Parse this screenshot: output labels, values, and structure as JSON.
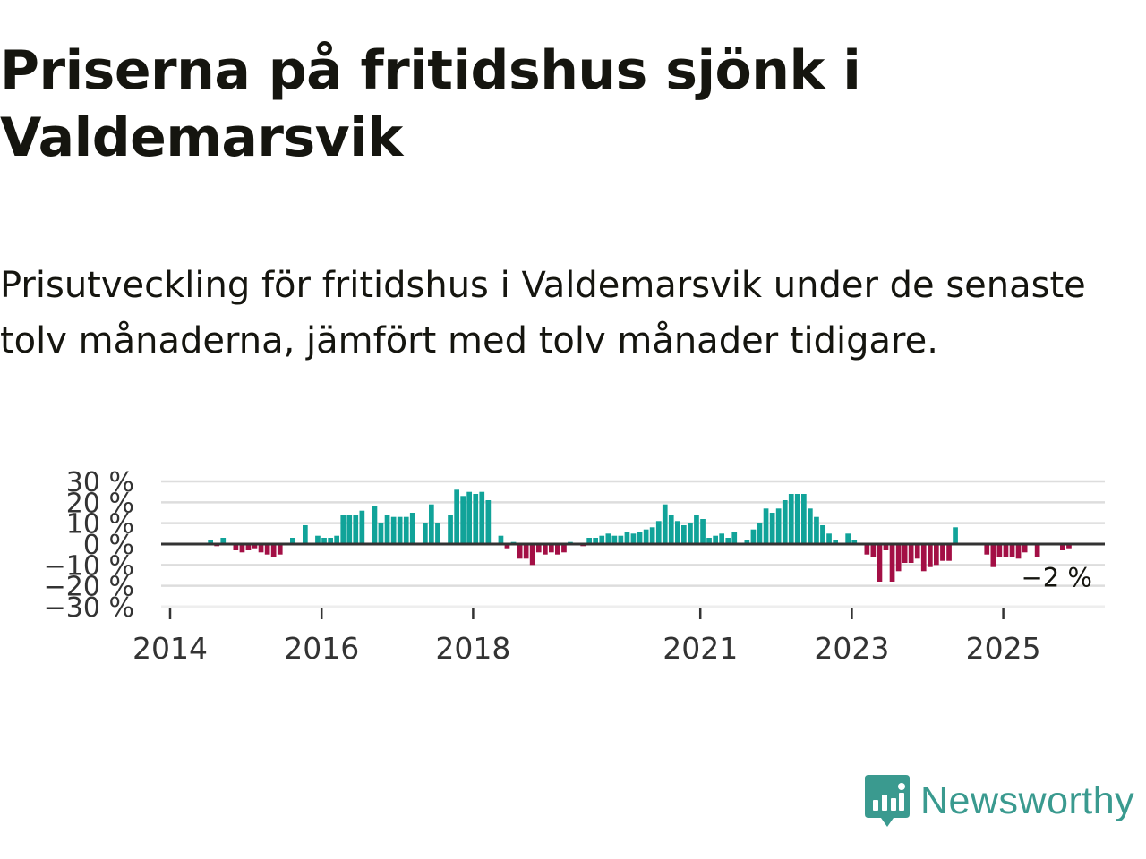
{
  "title": "Priserna på fritidshus sjönk i Valdemarsvik",
  "subtitle": "Prisutveckling för fritidshus i Valdemarsvik under de senaste tolv månaderna, jämfört med tolv månader tidigare.",
  "brand": {
    "name": "Newsworthy",
    "icon": "newsworthy-logo-icon",
    "color": "#3a9a8f"
  },
  "colors": {
    "positive": "#11a399",
    "negative": "#a30f45",
    "zero_line": "#333333",
    "grid": "#dddddd"
  },
  "chart_data": {
    "type": "bar",
    "x_format": "YYYY-MM",
    "ylabel": "",
    "ylim": [
      -30,
      30
    ],
    "yticks": [
      {
        "value": 30,
        "label": "30 %"
      },
      {
        "value": 20,
        "label": "20 %"
      },
      {
        "value": 10,
        "label": "10 %"
      },
      {
        "value": 0,
        "label": "0 %"
      },
      {
        "value": -10,
        "label": "−10 %"
      },
      {
        "value": -20,
        "label": "−20 %"
      },
      {
        "value": -30,
        "label": "−30 %"
      }
    ],
    "xticks": [
      "2014",
      "2016",
      "2018",
      "2021",
      "2023",
      "2025"
    ],
    "grid": "horizontal",
    "end_label": "−2 %",
    "series": [
      {
        "values": [
          [
            "2014-07",
            2
          ],
          [
            "2014-08",
            -1
          ],
          [
            "2014-09",
            3
          ],
          [
            "2014-11",
            -3
          ],
          [
            "2014-12",
            -4
          ],
          [
            "2015-01",
            -3
          ],
          [
            "2015-02",
            -2
          ],
          [
            "2015-03",
            -4
          ],
          [
            "2015-04",
            -5
          ],
          [
            "2015-05",
            -6
          ],
          [
            "2015-06",
            -5
          ],
          [
            "2015-08",
            3
          ],
          [
            "2015-10",
            9
          ],
          [
            "2015-12",
            4
          ],
          [
            "2016-01",
            3
          ],
          [
            "2016-02",
            3
          ],
          [
            "2016-03",
            4
          ],
          [
            "2016-04",
            14
          ],
          [
            "2016-05",
            14
          ],
          [
            "2016-06",
            14
          ],
          [
            "2016-07",
            16
          ],
          [
            "2016-09",
            18
          ],
          [
            "2016-10",
            10
          ],
          [
            "2016-11",
            14
          ],
          [
            "2016-12",
            13
          ],
          [
            "2017-01",
            13
          ],
          [
            "2017-02",
            13
          ],
          [
            "2017-03",
            15
          ],
          [
            "2017-05",
            10
          ],
          [
            "2017-06",
            19
          ],
          [
            "2017-07",
            10
          ],
          [
            "2017-09",
            14
          ],
          [
            "2017-10",
            26
          ],
          [
            "2017-11",
            23
          ],
          [
            "2017-12",
            25
          ],
          [
            "2018-01",
            24
          ],
          [
            "2018-02",
            25
          ],
          [
            "2018-03",
            21
          ],
          [
            "2018-05",
            4
          ],
          [
            "2018-06",
            -2
          ],
          [
            "2018-07",
            1
          ],
          [
            "2018-08",
            -7
          ],
          [
            "2018-09",
            -7
          ],
          [
            "2018-10",
            -10
          ],
          [
            "2018-11",
            -4
          ],
          [
            "2018-12",
            -5
          ],
          [
            "2019-01",
            -4
          ],
          [
            "2019-02",
            -5
          ],
          [
            "2019-03",
            -4
          ],
          [
            "2019-04",
            1
          ],
          [
            "2019-06",
            -1
          ],
          [
            "2019-07",
            3
          ],
          [
            "2019-08",
            3
          ],
          [
            "2019-09",
            4
          ],
          [
            "2019-10",
            5
          ],
          [
            "2019-11",
            4
          ],
          [
            "2019-12",
            4
          ],
          [
            "2020-01",
            6
          ],
          [
            "2020-02",
            5
          ],
          [
            "2020-03",
            6
          ],
          [
            "2020-04",
            7
          ],
          [
            "2020-05",
            8
          ],
          [
            "2020-06",
            11
          ],
          [
            "2020-07",
            19
          ],
          [
            "2020-08",
            14
          ],
          [
            "2020-09",
            11
          ],
          [
            "2020-10",
            9
          ],
          [
            "2020-11",
            10
          ],
          [
            "2020-12",
            14
          ],
          [
            "2021-01",
            12
          ],
          [
            "2021-02",
            3
          ],
          [
            "2021-03",
            4
          ],
          [
            "2021-04",
            5
          ],
          [
            "2021-05",
            3
          ],
          [
            "2021-06",
            6
          ],
          [
            "2021-08",
            2
          ],
          [
            "2021-09",
            7
          ],
          [
            "2021-10",
            10
          ],
          [
            "2021-11",
            17
          ],
          [
            "2021-12",
            15
          ],
          [
            "2022-01",
            17
          ],
          [
            "2022-02",
            21
          ],
          [
            "2022-03",
            24
          ],
          [
            "2022-04",
            24
          ],
          [
            "2022-05",
            24
          ],
          [
            "2022-06",
            17
          ],
          [
            "2022-07",
            13
          ],
          [
            "2022-08",
            9
          ],
          [
            "2022-09",
            5
          ],
          [
            "2022-10",
            2
          ],
          [
            "2022-12",
            5
          ],
          [
            "2023-01",
            2
          ],
          [
            "2023-03",
            -5
          ],
          [
            "2023-04",
            -6
          ],
          [
            "2023-05",
            -18
          ],
          [
            "2023-06",
            -3
          ],
          [
            "2023-07",
            -18
          ],
          [
            "2023-08",
            -13
          ],
          [
            "2023-09",
            -9
          ],
          [
            "2023-10",
            -9
          ],
          [
            "2023-11",
            -7
          ],
          [
            "2023-12",
            -13
          ],
          [
            "2024-01",
            -11
          ],
          [
            "2024-02",
            -10
          ],
          [
            "2024-03",
            -8
          ],
          [
            "2024-04",
            -8
          ],
          [
            "2024-05",
            8
          ],
          [
            "2024-10",
            -5
          ],
          [
            "2024-11",
            -11
          ],
          [
            "2024-12",
            -6
          ],
          [
            "2025-01",
            -6
          ],
          [
            "2025-02",
            -6
          ],
          [
            "2025-03",
            -7
          ],
          [
            "2025-04",
            -4
          ],
          [
            "2025-06",
            -6
          ],
          [
            "2025-10",
            -3
          ],
          [
            "2025-11",
            -2
          ]
        ]
      }
    ]
  }
}
